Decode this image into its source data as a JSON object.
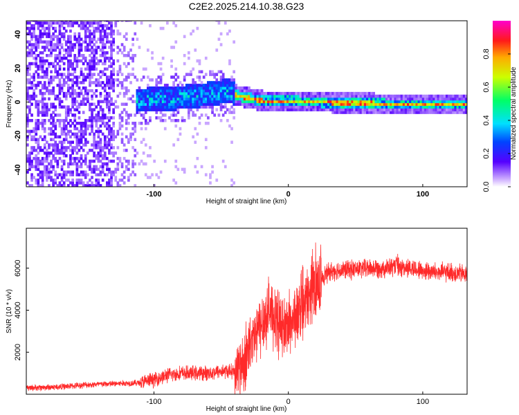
{
  "title": "C2E2.2025.214.10.38.G23",
  "chart_data": [
    {
      "type": "heatmap",
      "xlabel": "Height of straight line (km)",
      "ylabel": "Frequency (Hz)",
      "xlim": [
        -195,
        133
      ],
      "ylim": [
        -50,
        48
      ],
      "xticks": [
        -100,
        0,
        100
      ],
      "yticks": [
        -40,
        -20,
        0,
        20,
        40
      ],
      "colorbar": {
        "label": "Normalized spectral amplitude",
        "range": [
          0,
          1
        ],
        "ticks": [
          "0.0",
          "0.2",
          "0.4",
          "0.6",
          "0.8"
        ],
        "colormap": "rainbow: violet(0) - blue - cyan - green - yellow - red - magenta(1)"
      },
      "regions": [
        {
          "x_range": [
            -195,
            -130
          ],
          "description": "dense speckle, amplitude ~0.05-0.15 across all frequencies",
          "level": 0.1
        },
        {
          "x_range": [
            -130,
            -115
          ],
          "description": "sparse speckle",
          "level": 0.07
        },
        {
          "x_range": [
            -115,
            -40
          ],
          "description": "band rising from ~-2 Hz to ~6 Hz, width ~12 Hz",
          "level": 0.35
        },
        {
          "x_range": [
            -40,
            133
          ],
          "description": "narrow band near 0 Hz, drifting to ~-2 Hz",
          "level": 0.75
        }
      ],
      "ridge": [
        {
          "x": -115,
          "y": 0
        },
        {
          "x": -100,
          "y": 1
        },
        {
          "x": -80,
          "y": 2
        },
        {
          "x": -60,
          "y": 4
        },
        {
          "x": -45,
          "y": 6
        },
        {
          "x": -38,
          "y": 3
        },
        {
          "x": -20,
          "y": 0
        },
        {
          "x": 0,
          "y": 0
        },
        {
          "x": 40,
          "y": -1
        },
        {
          "x": 80,
          "y": -2
        },
        {
          "x": 133,
          "y": -2
        }
      ]
    },
    {
      "type": "line",
      "xlabel": "Height of straight line (km)",
      "ylabel": "SNR (10 * v/v)",
      "xlim": [
        -195,
        133
      ],
      "ylim": [
        0,
        7900
      ],
      "xticks": [
        -100,
        0,
        100
      ],
      "yticks": [
        2000,
        4000,
        6000
      ],
      "color": "#ff2a2a",
      "series": [
        {
          "x": [
            -195,
            -170,
            -150,
            -130,
            -110,
            -100,
            -90,
            -80,
            -70,
            -60,
            -50,
            -40,
            -35,
            -30,
            -25,
            -20,
            -15,
            -10,
            -5,
            0,
            5,
            10,
            15,
            20,
            25,
            30,
            35,
            40,
            50,
            60,
            70,
            80,
            90,
            100,
            110,
            120,
            133
          ],
          "y": [
            300,
            350,
            450,
            500,
            550,
            700,
            900,
            1000,
            1000,
            1000,
            1100,
            1100,
            1400,
            2000,
            2700,
            3300,
            4000,
            3700,
            3100,
            3300,
            3700,
            4000,
            4600,
            5300,
            5600,
            5800,
            5900,
            5900,
            5950,
            6000,
            6000,
            6050,
            6000,
            5900,
            5800,
            5800,
            5700
          ]
        }
      ]
    }
  ]
}
